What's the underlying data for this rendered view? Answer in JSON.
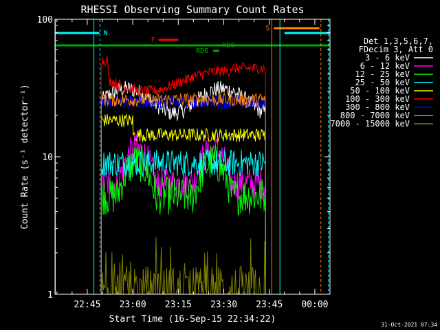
{
  "chart_data": {
    "type": "line",
    "title": "RHESSI Observing Summary Count Rates",
    "xlabel": "Start Time (16-Sep-15 22:34:22)",
    "ylabel": "Count Rate (s⁻¹ detector⁻¹)",
    "y_scale": "log",
    "ylim": [
      1,
      100
    ],
    "xlim_minutes_after_22_30": [
      4.37,
      95.0
    ],
    "x_ticks": [
      {
        "label": "22:45",
        "t": 15
      },
      {
        "label": "23:00",
        "t": 30
      },
      {
        "label": "23:15",
        "t": 45
      },
      {
        "label": "23:30",
        "t": 60
      },
      {
        "label": "23:45",
        "t": 75
      },
      {
        "label": "00:00",
        "t": 90
      }
    ],
    "y_ticks": [
      {
        "label": "1",
        "v": 1
      },
      {
        "label": "10",
        "v": 10
      },
      {
        "label": "100",
        "v": 100
      }
    ],
    "legend_header": [
      "Det 1,3,5,6,7,",
      "FDecim 3, Att 0"
    ],
    "legend_position": "right",
    "series": [
      {
        "name": "3 - 6 keV",
        "color": "#ffffff",
        "level": 26,
        "noise": 0.06
      },
      {
        "name": "6 - 12 keV",
        "color": "#ff00ff",
        "level": 8,
        "noise": 0.12
      },
      {
        "name": "12 - 25 keV",
        "color": "#00ff00",
        "level": 6.5,
        "noise": 0.14
      },
      {
        "name": "25 - 50 keV",
        "color": "#00ffff",
        "level": 9,
        "noise": 0.1
      },
      {
        "name": "50 - 100 keV",
        "color": "#ffff00",
        "level": 16,
        "noise": 0.05
      },
      {
        "name": "100 - 300 keV",
        "color": "#ff0000",
        "level": 40,
        "noise": 0.04
      },
      {
        "name": "300 - 800 keV",
        "color": "#0000ff",
        "level": 25,
        "noise": 0.05
      },
      {
        "name": "800 - 7000 keV",
        "color": "#ff8800",
        "level": 26,
        "noise": 0.05
      },
      {
        "name": "7000 - 15000 keV",
        "color": "#808000",
        "level": 1.5,
        "noise": 0.2
      }
    ],
    "data_interval_minutes": [
      19.6,
      73.8
    ],
    "flags": [
      {
        "label": "N",
        "color": "#00ffff"
      },
      {
        "label": "F",
        "color": "#ff0000"
      },
      {
        "label": "RD0",
        "color": "#00aa00"
      },
      {
        "label": "RD6",
        "color": "#00aa00"
      },
      {
        "label": "S",
        "color": "#ff8800"
      }
    ],
    "grid": false
  },
  "footer": {
    "timestamp": "31-Oct-2021 07:34"
  },
  "colors": {
    "background": "#000000",
    "axes": "#ffffff",
    "night": "#00ffff",
    "flare": "#ff0000",
    "decimation": "#00aa00",
    "saa": "#ff8800"
  }
}
